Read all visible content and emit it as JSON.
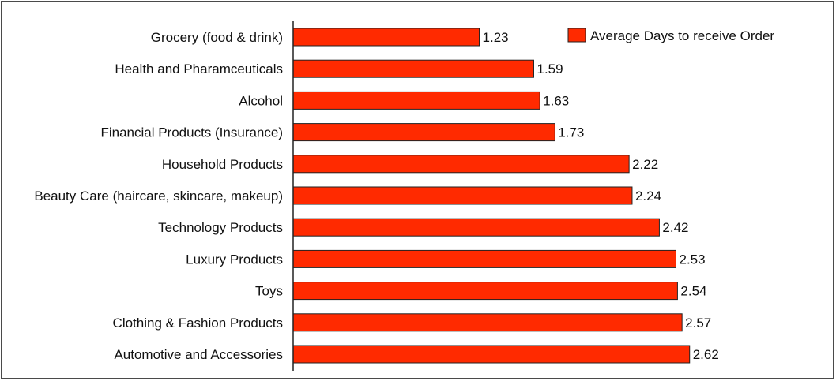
{
  "chart_data": {
    "type": "bar",
    "orientation": "horizontal",
    "categories": [
      "Grocery (food & drink)",
      "Health and Pharamceuticals",
      "Alcohol",
      "Financial Products (Insurance)",
      "Household Products",
      "Beauty Care (haircare, skincare, makeup)",
      "Technology Products",
      "Luxury Products",
      "Toys",
      "Clothing & Fashion Products",
      "Automotive and Accessories"
    ],
    "series": [
      {
        "name": "Average Days to receive Order",
        "values": [
          1.23,
          1.59,
          1.63,
          1.73,
          2.22,
          2.24,
          2.42,
          2.53,
          2.54,
          2.57,
          2.62
        ],
        "color": "#ff2a00"
      }
    ],
    "value_labels": [
      "1.23",
      "1.59",
      "1.63",
      "1.73",
      "2.22",
      "2.24",
      "2.42",
      "2.53",
      "2.54",
      "2.57",
      "2.62"
    ],
    "xlim": [
      0,
      3.3
    ],
    "grid": false,
    "axis_ticks_shown": false,
    "legend": {
      "position": "top-right",
      "label": "Average Days to receive Order"
    },
    "bar_stroke": "#222222"
  }
}
